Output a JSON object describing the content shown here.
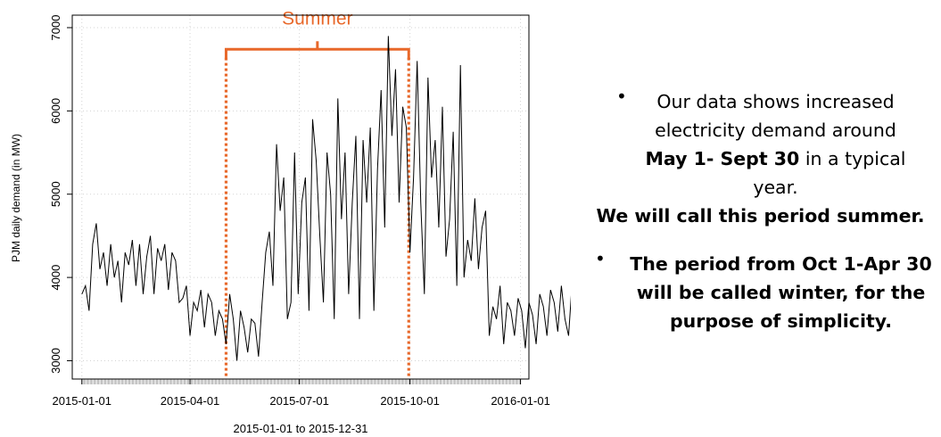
{
  "chart_data": {
    "type": "line",
    "title": "",
    "xlabel": "2015-01-01 to 2015-12-31",
    "ylabel": "PJM daily demand (in MW)",
    "x_start": "2015-01-01",
    "x_end": "2015-12-31",
    "xlim": [
      "2014-12-24",
      "2016-01-08"
    ],
    "ylim": [
      2780,
      7150
    ],
    "x_ticks": [
      "2015-01-01",
      "2015-04-01",
      "2015-07-01",
      "2015-10-01",
      "2016-01-01"
    ],
    "y_ticks": [
      3000,
      4000,
      5000,
      6000,
      7000
    ],
    "grid": true,
    "series": [
      {
        "name": "",
        "color": "#000000",
        "sampled_every_days": 3,
        "values": [
          3800,
          3900,
          3600,
          4400,
          4650,
          4100,
          4300,
          3900,
          4400,
          4000,
          4200,
          3700,
          4300,
          4150,
          4450,
          3900,
          4400,
          3800,
          4250,
          4500,
          3800,
          4350,
          4200,
          4400,
          3850,
          4300,
          4200,
          3700,
          3750,
          3900,
          3300,
          3700,
          3600,
          3850,
          3400,
          3800,
          3700,
          3300,
          3600,
          3500,
          3200,
          3800,
          3500,
          3000,
          3600,
          3400,
          3100,
          3500,
          3450,
          3050,
          3700,
          4300,
          4550,
          3900,
          5600,
          4800,
          5200,
          3500,
          3700,
          5500,
          3800,
          4900,
          5200,
          3600,
          5900,
          5400,
          4500,
          3700,
          5500,
          5000,
          3500,
          6150,
          4700,
          5500,
          3800,
          4900,
          5700,
          3500,
          5650,
          4900,
          5800,
          3600,
          5300,
          6250,
          4600,
          6900,
          5700,
          6500,
          4900,
          6050,
          5800,
          4300,
          5200,
          6600,
          4900,
          3800,
          6400,
          5200,
          5650,
          4600,
          6050,
          4250,
          4700,
          5750,
          3900,
          6550,
          4000,
          4450,
          4200,
          4950,
          4100,
          4600,
          4800,
          3300,
          3650,
          3500,
          3900,
          3200,
          3700,
          3600,
          3300,
          3750,
          3600,
          3150,
          3700,
          3550,
          3200,
          3800,
          3650,
          3300,
          3850,
          3700,
          3350,
          3900,
          3500,
          3300,
          3950,
          3700,
          3300,
          3900,
          3850,
          3400,
          3950,
          3750,
          3300,
          3900,
          3850,
          3350,
          3950,
          3900,
          3450,
          3900,
          3700,
          3300,
          3950,
          3850,
          3400,
          3900,
          3850,
          3250,
          3950,
          3700
        ]
      }
    ],
    "annotations": [
      {
        "type": "vline",
        "x": "2015-05-01",
        "color": "#E8682A",
        "style": "dotted"
      },
      {
        "type": "vline",
        "x": "2015-09-30",
        "color": "#E8682A",
        "style": "dotted"
      },
      {
        "type": "bracket",
        "from": "2015-05-01",
        "to": "2015-09-30",
        "label": "Summer",
        "color": "#E8682A"
      }
    ]
  },
  "notes": {
    "bullet1": {
      "l1": "Our data shows increased",
      "l2": "electricity demand around",
      "l3_bold": "May 1- Sept 30",
      "l3_rest": " in a typical",
      "l4": "year.",
      "l5_bold": "We will call this period summer."
    },
    "bullet2": {
      "l1": "The period from Oct 1-Apr 30",
      "l2": "will be called winter, for the",
      "l3": "purpose of simplicity."
    },
    "bullet_glyph": "•"
  }
}
